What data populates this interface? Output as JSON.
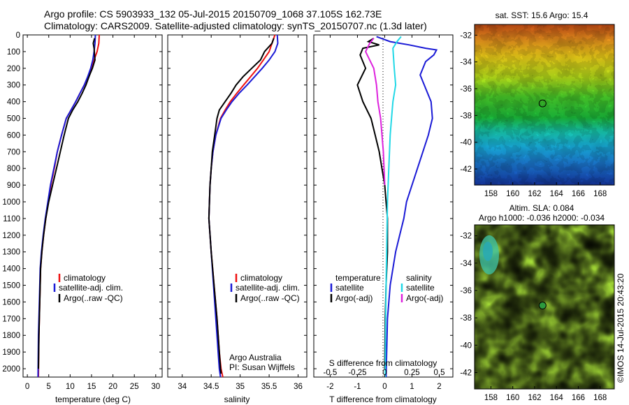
{
  "header": {
    "line1": "Argo profile: CS 5903933_132 05-Jul-2015 20150709_1068 37.105S 162.73E",
    "line2": "Climatology: CARS2009. Satellite-adjusted climatology: synTS_20150707.nc (1.3d later)"
  },
  "side_label": "©IMOS 14-Jul-2015 20:43:20",
  "colors": {
    "climatology": "#ee1111",
    "satellite": "#1a1ad6",
    "argo": "#000000",
    "salinity_satellite": "#22d8e6",
    "salinity_argo": "#dd22dd"
  },
  "chart_data": [
    {
      "type": "line",
      "name": "temperature-profile",
      "xlabel": "temperature (deg C)",
      "xlim": [
        -1,
        31.5
      ],
      "ylim": [
        2050,
        0
      ],
      "xticks": [
        0,
        5,
        10,
        15,
        20,
        25,
        30
      ],
      "yticks": [
        0,
        100,
        200,
        300,
        400,
        500,
        600,
        700,
        800,
        900,
        1000,
        1100,
        1200,
        1300,
        1400,
        1500,
        1600,
        1700,
        1800,
        1900,
        2000
      ],
      "series": [
        {
          "name": "climatology",
          "color": "#ee1111",
          "x": [
            16.8,
            16.7,
            16.3,
            15.6,
            15.0,
            14.2,
            13.3,
            12.3,
            11.3,
            10.2,
            9.1,
            8.0,
            7.0,
            6.3,
            5.5,
            4.9,
            4.3,
            3.8,
            3.4,
            3.1,
            2.9,
            2.7,
            2.6
          ],
          "y": [
            0,
            50,
            100,
            150,
            200,
            250,
            300,
            350,
            400,
            450,
            500,
            600,
            700,
            800,
            900,
            1000,
            1100,
            1200,
            1300,
            1400,
            1600,
            1800,
            2050
          ]
        },
        {
          "name": "satellite-adj. clim.",
          "color": "#1a1ad6",
          "x": [
            15.9,
            15.8,
            15.6,
            15.3,
            14.8,
            14.1,
            13.3,
            12.3,
            11.3,
            10.2,
            9.1,
            8.0,
            7.0,
            6.2,
            5.4,
            4.8,
            4.2,
            3.7,
            3.3,
            3.0,
            2.8,
            2.6,
            2.5
          ],
          "y": [
            0,
            50,
            100,
            150,
            200,
            250,
            300,
            350,
            400,
            450,
            500,
            600,
            700,
            800,
            900,
            1000,
            1100,
            1200,
            1300,
            1400,
            1600,
            1800,
            2050
          ]
        },
        {
          "name": "Argo(..raw -QC)",
          "color": "#000000",
          "x": [
            15.7,
            15.4,
            15.6,
            15.8,
            15.2,
            14.4,
            13.7,
            12.8,
            11.8,
            10.6,
            9.6,
            8.6,
            7.7,
            6.8,
            5.9,
            5.0,
            4.3,
            3.8,
            3.4,
            3.1,
            2.9,
            2.7,
            2.6
          ],
          "y": [
            20,
            50,
            80,
            150,
            200,
            250,
            300,
            350,
            400,
            450,
            500,
            600,
            700,
            800,
            900,
            1000,
            1100,
            1200,
            1300,
            1400,
            1600,
            1800,
            2000
          ]
        }
      ],
      "legend": {
        "placement": "lower-center",
        "entries": [
          "climatology",
          "satellite-adj. clim.",
          "Argo(..raw -QC)"
        ]
      }
    },
    {
      "type": "line",
      "name": "salinity-profile",
      "xlabel": "salinity",
      "xlim": [
        33.75,
        36.15
      ],
      "ylim": [
        2050,
        0
      ],
      "xticks": [
        34,
        34.5,
        35,
        35.5,
        36
      ],
      "series": [
        {
          "name": "climatology",
          "color": "#ee1111",
          "x": [
            35.6,
            35.55,
            35.5,
            35.4,
            35.3,
            35.18,
            35.06,
            34.94,
            34.83,
            34.74,
            34.66,
            34.58,
            34.53,
            34.5,
            34.48,
            34.47,
            34.46,
            34.5,
            34.55,
            34.6,
            34.64,
            34.67,
            34.7
          ],
          "y": [
            0,
            50,
            100,
            150,
            200,
            250,
            300,
            350,
            400,
            450,
            500,
            600,
            700,
            800,
            900,
            1000,
            1100,
            1300,
            1500,
            1700,
            1900,
            2000,
            2050
          ]
        },
        {
          "name": "satellite-adj. clim.",
          "color": "#1a1ad6",
          "x": [
            35.64,
            35.65,
            35.6,
            35.5,
            35.38,
            35.25,
            35.12,
            34.98,
            34.86,
            34.76,
            34.67,
            34.58,
            34.53,
            34.5,
            34.48,
            34.47,
            34.46,
            34.5,
            34.54,
            34.58,
            34.62,
            34.64,
            34.66
          ],
          "y": [
            0,
            50,
            100,
            150,
            200,
            250,
            300,
            350,
            400,
            450,
            500,
            600,
            700,
            800,
            900,
            1000,
            1100,
            1300,
            1500,
            1700,
            1900,
            2000,
            2050
          ]
        },
        {
          "name": "Argo(..raw -QC)",
          "color": "#000000",
          "x": [
            35.58,
            35.55,
            35.42,
            35.35,
            35.2,
            35.05,
            34.93,
            34.84,
            34.74,
            34.64,
            34.6,
            34.56,
            34.52,
            34.5,
            34.48,
            34.47,
            34.46,
            34.5,
            34.55,
            34.6,
            34.64,
            34.66,
            34.67
          ],
          "y": [
            20,
            50,
            100,
            150,
            200,
            250,
            300,
            350,
            400,
            450,
            500,
            600,
            700,
            800,
            900,
            1000,
            1100,
            1300,
            1500,
            1700,
            1900,
            2000,
            2030
          ]
        }
      ],
      "legend": {
        "placement": "lower-center",
        "entries": [
          "climatology",
          "satellite-adj. clim.",
          "Argo(..raw -QC)"
        ]
      },
      "annotation": [
        "Argo Australia",
        "PI: Susan Wijffels"
      ]
    },
    {
      "type": "line",
      "name": "difference-profile",
      "xlabel": "T difference from climatology",
      "xlabel2": "S difference from climatology",
      "xlim": [
        -2.6,
        2.5
      ],
      "ylim": [
        2050,
        0
      ],
      "xticks": [
        -2,
        -1,
        0,
        1,
        2
      ],
      "xtick_labels": [
        "-2",
        "-1",
        "0",
        "1",
        "2"
      ],
      "xticks2": [
        -2,
        -1,
        0,
        1,
        2
      ],
      "xtick2_labels": [
        "-0.5",
        "-0.25",
        "0",
        "0.25",
        "0.5"
      ],
      "series": [
        {
          "name": "temperature satellite",
          "color": "#1a1ad6",
          "x": [
            -0.3,
            0.2,
            0.9,
            1.5,
            1.9,
            1.8,
            1.5,
            1.3,
            1.7,
            1.75,
            1.6,
            1.4,
            1.2,
            1.0,
            0.8,
            0.7,
            0.55,
            0.4,
            0.3,
            0.2,
            0.1,
            0.05
          ],
          "y": [
            10,
            40,
            60,
            80,
            90,
            120,
            160,
            240,
            400,
            500,
            600,
            700,
            800,
            900,
            1000,
            1100,
            1200,
            1300,
            1400,
            1500,
            1700,
            2050
          ]
        },
        {
          "name": "temperature Argo(-adj)",
          "color": "#000000",
          "x": [
            -0.4,
            -0.6,
            -0.2,
            -0.8,
            -0.9,
            -0.7,
            -1.0,
            -0.8,
            -0.5,
            -0.35,
            -0.2,
            -0.1,
            0.0,
            0.05,
            0.1,
            0.1,
            0.05,
            0.02,
            0.0
          ],
          "y": [
            20,
            40,
            60,
            80,
            120,
            200,
            300,
            400,
            500,
            600,
            700,
            800,
            900,
            1000,
            1100,
            1300,
            1500,
            1700,
            2000
          ]
        },
        {
          "name": "salinity satellite",
          "color": "#22d8e6",
          "x": [
            0.6,
            0.45,
            0.3,
            0.35,
            0.4,
            0.3,
            0.25,
            0.2,
            0.15,
            0.1,
            0.08,
            0.05,
            0.03,
            0.02
          ],
          "y": [
            10,
            40,
            80,
            200,
            300,
            400,
            500,
            600,
            800,
            1000,
            1200,
            1500,
            1800,
            2050
          ]
        },
        {
          "name": "salinity Argo(-adj)",
          "color": "#dd22dd",
          "x": [
            -0.4,
            -0.55,
            -0.7,
            -0.4,
            -0.3,
            -0.25,
            -0.15,
            -0.05,
            0.0
          ],
          "y": [
            20,
            50,
            100,
            200,
            300,
            400,
            500,
            700,
            900
          ]
        }
      ],
      "legend": {
        "placement": "lower-center",
        "temperature_heading": "temperature",
        "salinity_heading": "salinity",
        "entries": [
          "satellite",
          "Argo(-adj)",
          "satellite",
          "Argo(-adj)"
        ]
      }
    },
    {
      "type": "heatmap",
      "name": "sst-map",
      "title": "sat. SST: 15.6 Argo: 15.4",
      "xlim": [
        156.5,
        169.3
      ],
      "ylim": [
        -43.2,
        -31.2
      ],
      "xticks": [
        158,
        160,
        162,
        164,
        166,
        168
      ],
      "yticks": [
        -32,
        -34,
        -36,
        -38,
        -40,
        -42
      ],
      "float_position": [
        162.73,
        -37.1
      ]
    },
    {
      "type": "heatmap",
      "name": "sla-map",
      "title": "Altim. SLA: 0.084",
      "subtitle": "Argo h1000: -0.036 h2000: -0.034",
      "xlim": [
        156.5,
        169.3
      ],
      "ylim": [
        -43.2,
        -31.2
      ],
      "xticks": [
        158,
        160,
        162,
        164,
        166,
        168
      ],
      "yticks": [
        -32,
        -34,
        -36,
        -38,
        -40,
        -42
      ],
      "float_position": [
        162.73,
        -37.1
      ]
    }
  ]
}
